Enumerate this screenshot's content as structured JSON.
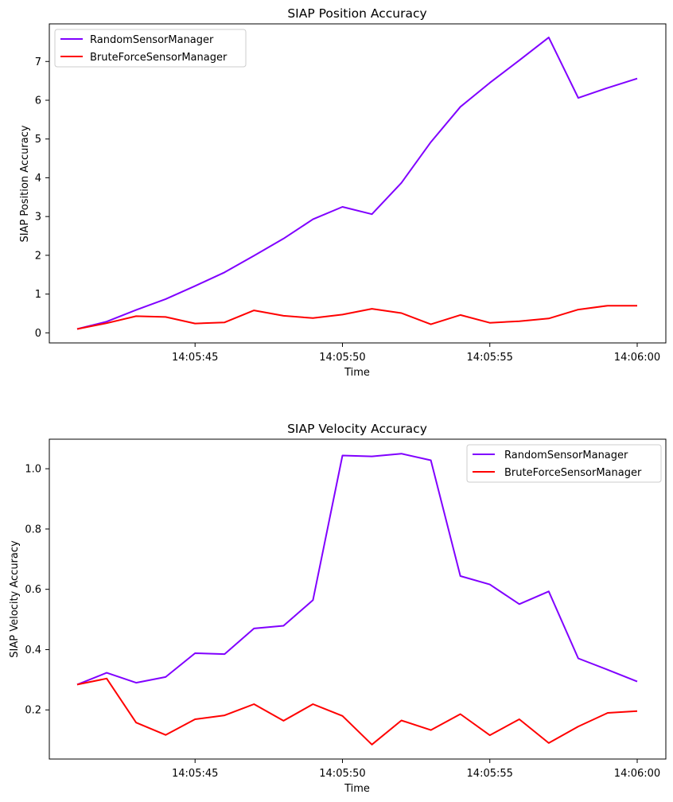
{
  "chart_data": [
    {
      "type": "line",
      "title": "SIAP Position Accuracy",
      "xlabel": "Time",
      "ylabel": "SIAP Position Accuracy",
      "x": [
        "14:05:41",
        "14:05:42",
        "14:05:43",
        "14:05:44",
        "14:05:45",
        "14:05:46",
        "14:05:47",
        "14:05:48",
        "14:05:49",
        "14:05:50",
        "14:05:51",
        "14:05:52",
        "14:05:53",
        "14:05:54",
        "14:05:55",
        "14:05:56",
        "14:05:57",
        "14:05:58",
        "14:05:59",
        "14:06:00"
      ],
      "x_ticks": [
        "14:05:45",
        "14:05:50",
        "14:05:55",
        "14:06:00"
      ],
      "y_ticks": [
        0,
        1,
        2,
        3,
        4,
        5,
        6,
        7
      ],
      "ylim": [
        -0.26,
        7.97
      ],
      "grid": false,
      "legend_position": "top-left",
      "series": [
        {
          "name": "RandomSensorManager",
          "color": "#8000ff",
          "values": [
            0.1,
            0.29,
            0.59,
            0.87,
            1.21,
            1.56,
            1.99,
            2.43,
            2.93,
            3.25,
            3.06,
            3.87,
            4.92,
            5.83,
            6.45,
            7.03,
            7.62,
            6.06,
            6.32,
            6.56
          ]
        },
        {
          "name": "BruteForceSensorManager",
          "color": "#ff0000",
          "values": [
            0.1,
            0.25,
            0.43,
            0.41,
            0.24,
            0.27,
            0.58,
            0.44,
            0.38,
            0.47,
            0.62,
            0.51,
            0.22,
            0.46,
            0.26,
            0.3,
            0.37,
            0.6,
            0.7,
            0.7
          ]
        }
      ]
    },
    {
      "type": "line",
      "title": "SIAP Velocity Accuracy",
      "xlabel": "Time",
      "ylabel": "SIAP Velocity Accuracy",
      "x": [
        "14:05:41",
        "14:05:42",
        "14:05:43",
        "14:05:44",
        "14:05:45",
        "14:05:46",
        "14:05:47",
        "14:05:48",
        "14:05:49",
        "14:05:50",
        "14:05:51",
        "14:05:52",
        "14:05:53",
        "14:05:54",
        "14:05:55",
        "14:05:56",
        "14:05:57",
        "14:05:58",
        "14:05:59",
        "14:06:00"
      ],
      "x_ticks": [
        "14:05:45",
        "14:05:50",
        "14:05:55",
        "14:06:00"
      ],
      "y_ticks": [
        0.2,
        0.4,
        0.6,
        0.8,
        1.0
      ],
      "y_tick_labels": [
        "0.2",
        "0.4",
        "0.6",
        "0.8",
        "1.0"
      ],
      "ylim": [
        0.037,
        1.098
      ],
      "grid": false,
      "legend_position": "top-right",
      "series": [
        {
          "name": "RandomSensorManager",
          "color": "#8000ff",
          "values": [
            0.284,
            0.323,
            0.29,
            0.309,
            0.388,
            0.385,
            0.47,
            0.479,
            0.564,
            1.044,
            1.041,
            1.05,
            1.028,
            0.644,
            0.616,
            0.551,
            0.593,
            0.371,
            0.333,
            0.294
          ]
        },
        {
          "name": "BruteForceSensorManager",
          "color": "#ff0000",
          "values": [
            0.284,
            0.304,
            0.158,
            0.117,
            0.169,
            0.182,
            0.219,
            0.164,
            0.219,
            0.18,
            0.085,
            0.165,
            0.133,
            0.186,
            0.116,
            0.169,
            0.09,
            0.145,
            0.19,
            0.196
          ]
        }
      ]
    }
  ]
}
